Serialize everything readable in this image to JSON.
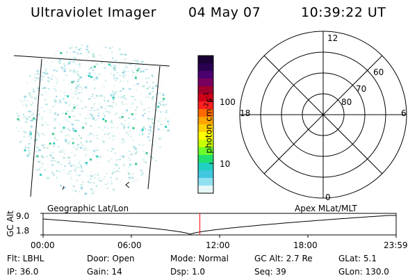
{
  "header": {
    "instrument": "Ultraviolet Imager",
    "date": "04 May 07",
    "time": "10:39:22 UT"
  },
  "colorbar": {
    "label": "photon cm",
    "label_sup1": "-2",
    "label_mid": "s",
    "label_sup2": "-1",
    "ticks": [
      "100",
      "10"
    ],
    "colors": [
      "#1a0033",
      "#2a0050",
      "#4b0070",
      "#7a0060",
      "#a0002a",
      "#d00018",
      "#ff2020",
      "#ff6a00",
      "#ffa500",
      "#ffd000",
      "#ffff00",
      "#c8ff00",
      "#6cff2a",
      "#20e070",
      "#20d0c0",
      "#40c8e0",
      "#90e0f0",
      "#e8f8fa"
    ]
  },
  "polar": {
    "top_label": "12",
    "bottom_label": "0",
    "left_label": "18",
    "right_label": "6",
    "ring_labels": [
      "60",
      "70",
      "80"
    ]
  },
  "timeline": {
    "axis_title": "GC Alt",
    "ymax": "9.0",
    "ymin": "1.8",
    "left_caption": "Geographic Lat/Lon",
    "right_caption": "Apex MLat/MLT",
    "ticks": [
      "00:00",
      "06:00",
      "12:00",
      "18:00",
      "23:59"
    ],
    "current_time_hours": 10.66,
    "marker_color": "#ff0000"
  },
  "status": {
    "flt": "Flt: LBHL",
    "door": "Door: Open",
    "mode": "Mode: Normal",
    "gc_alt": "GC Alt: 2.7 Re",
    "glat": "GLat:   5.1",
    "ip": "IP: 36.0",
    "gain": "Gain: 14",
    "dsp": "Dsp:     1.0",
    "seq": "Seq: 39",
    "glon": "GLon: 130.0"
  }
}
